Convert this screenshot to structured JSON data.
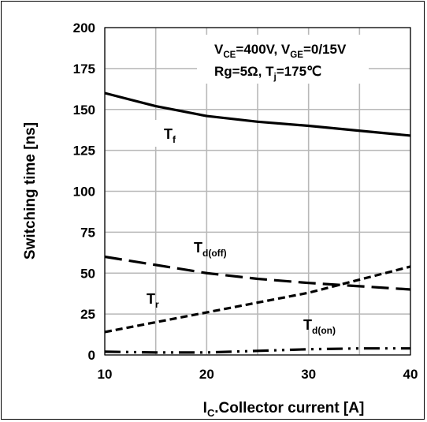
{
  "chart_data": {
    "type": "line",
    "xlabel_main": "I",
    "xlabel_sub": "C",
    "xlabel_rest": ".Collector current [A]",
    "ylabel": "Switching time [ns]",
    "xlim": [
      10,
      40
    ],
    "ylim": [
      0,
      200
    ],
    "xticks": [
      10,
      20,
      30,
      40
    ],
    "yticks": [
      0,
      25,
      50,
      75,
      100,
      125,
      150,
      175,
      200
    ],
    "xgrid_minor": [
      15,
      25,
      35
    ],
    "grid": true,
    "conditions": {
      "line1": [
        {
          "t": "V",
          "sub": false
        },
        {
          "t": "CE",
          "sub": true
        },
        {
          "t": "=400V, V",
          "sub": false
        },
        {
          "t": "GE",
          "sub": true
        },
        {
          "t": "=0/15V",
          "sub": false
        }
      ],
      "line2": [
        {
          "t": "Rg=5Ω, T",
          "sub": false
        },
        {
          "t": "j",
          "sub": true
        },
        {
          "t": "=175℃",
          "sub": false
        }
      ]
    },
    "series": [
      {
        "name": "T",
        "name_sub": "f",
        "style": "solid",
        "x": [
          10,
          15,
          20,
          25,
          30,
          35,
          40
        ],
        "y": [
          160,
          152,
          146,
          142.5,
          140,
          137,
          134
        ]
      },
      {
        "name": "T",
        "name_sub": "d(off)",
        "style": "long-dash",
        "x": [
          10,
          15,
          20,
          25,
          30,
          35,
          40
        ],
        "y": [
          60,
          55,
          50,
          46.5,
          44,
          42,
          40
        ]
      },
      {
        "name": "T",
        "name_sub": "r",
        "style": "short-dash",
        "x": [
          10,
          15,
          20,
          25,
          30,
          35,
          40
        ],
        "y": [
          14,
          20,
          26,
          32,
          38,
          46,
          54
        ]
      },
      {
        "name": "T",
        "name_sub": "d(on)",
        "style": "dash-dot-dot",
        "x": [
          10,
          15,
          20,
          25,
          30,
          35,
          40
        ],
        "y": [
          2,
          1.5,
          1.5,
          2.5,
          3.5,
          4,
          4
        ]
      }
    ]
  }
}
